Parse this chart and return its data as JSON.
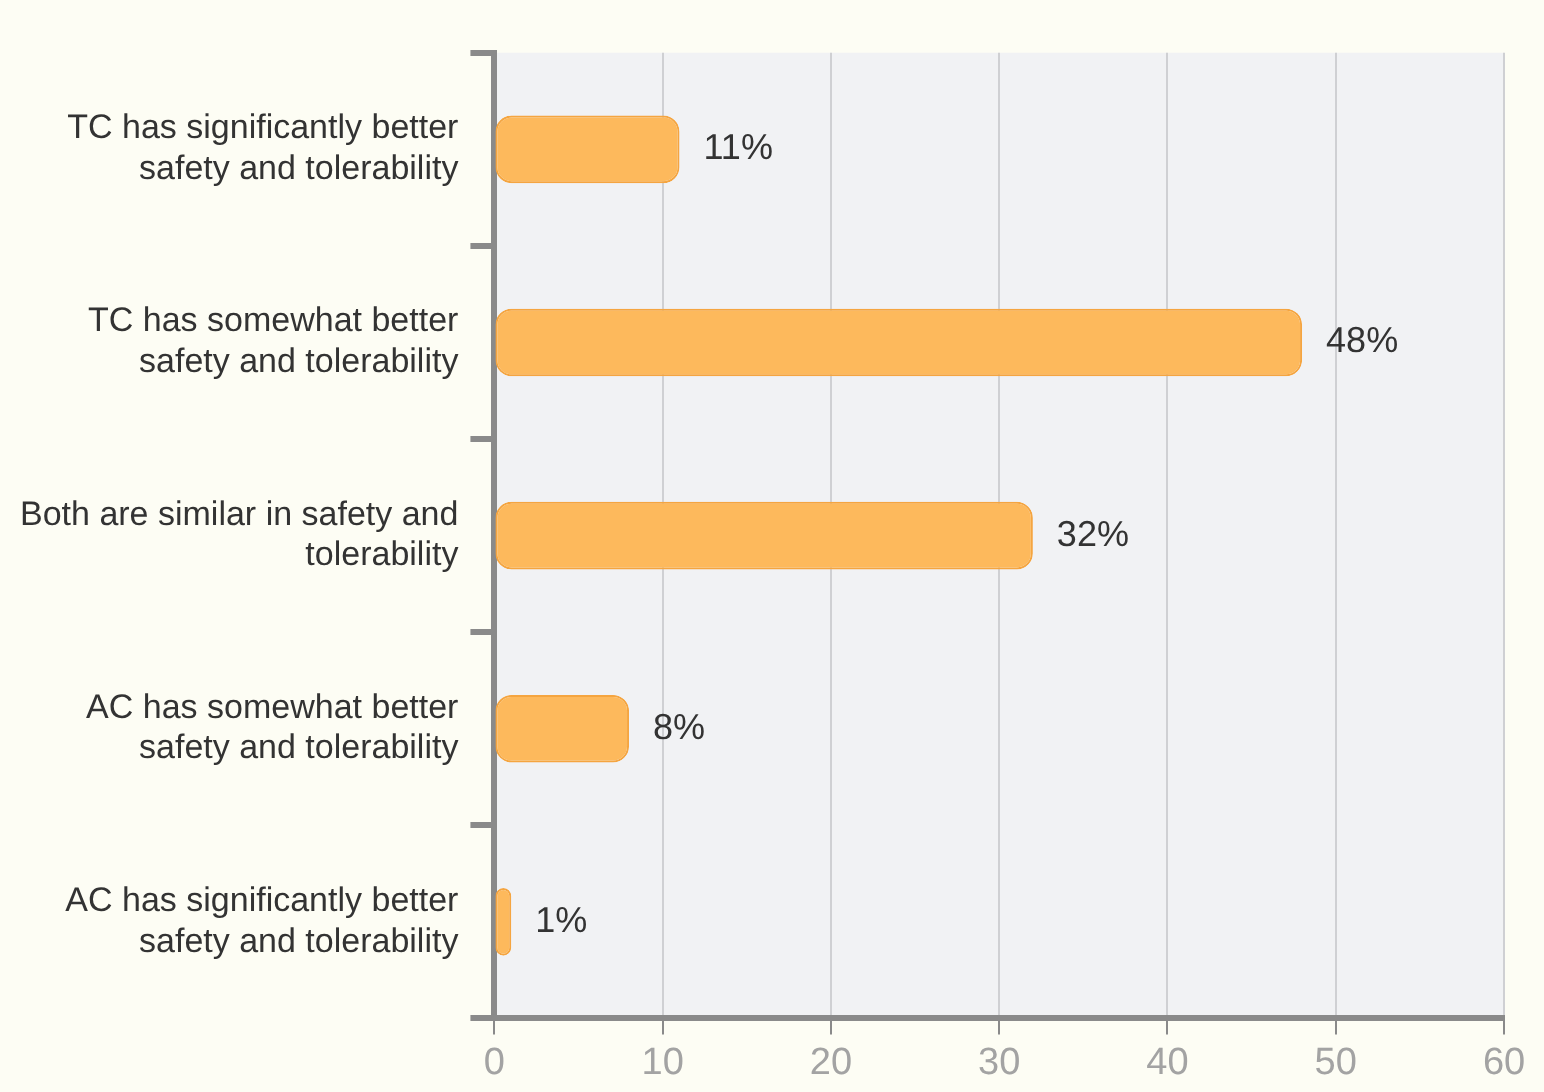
{
  "chart_data": {
    "type": "bar",
    "orientation": "horizontal",
    "categories": [
      "TC has significantly better safety and tolerability",
      "TC has somewhat better safety and tolerability",
      "Both are similar in safety and tolerability",
      "AC has somewhat better safety and tolerability",
      "AC has significantly better safety and tolerability"
    ],
    "values": [
      11,
      48,
      32,
      8,
      1
    ],
    "value_labels": [
      "11%",
      "48%",
      "32%",
      "8%",
      "1%"
    ],
    "color": "#fdb95c",
    "xlim": [
      0,
      60
    ],
    "xticks": [
      0,
      10,
      20,
      30,
      40,
      50,
      60
    ],
    "grid": "x",
    "legend": false
  }
}
